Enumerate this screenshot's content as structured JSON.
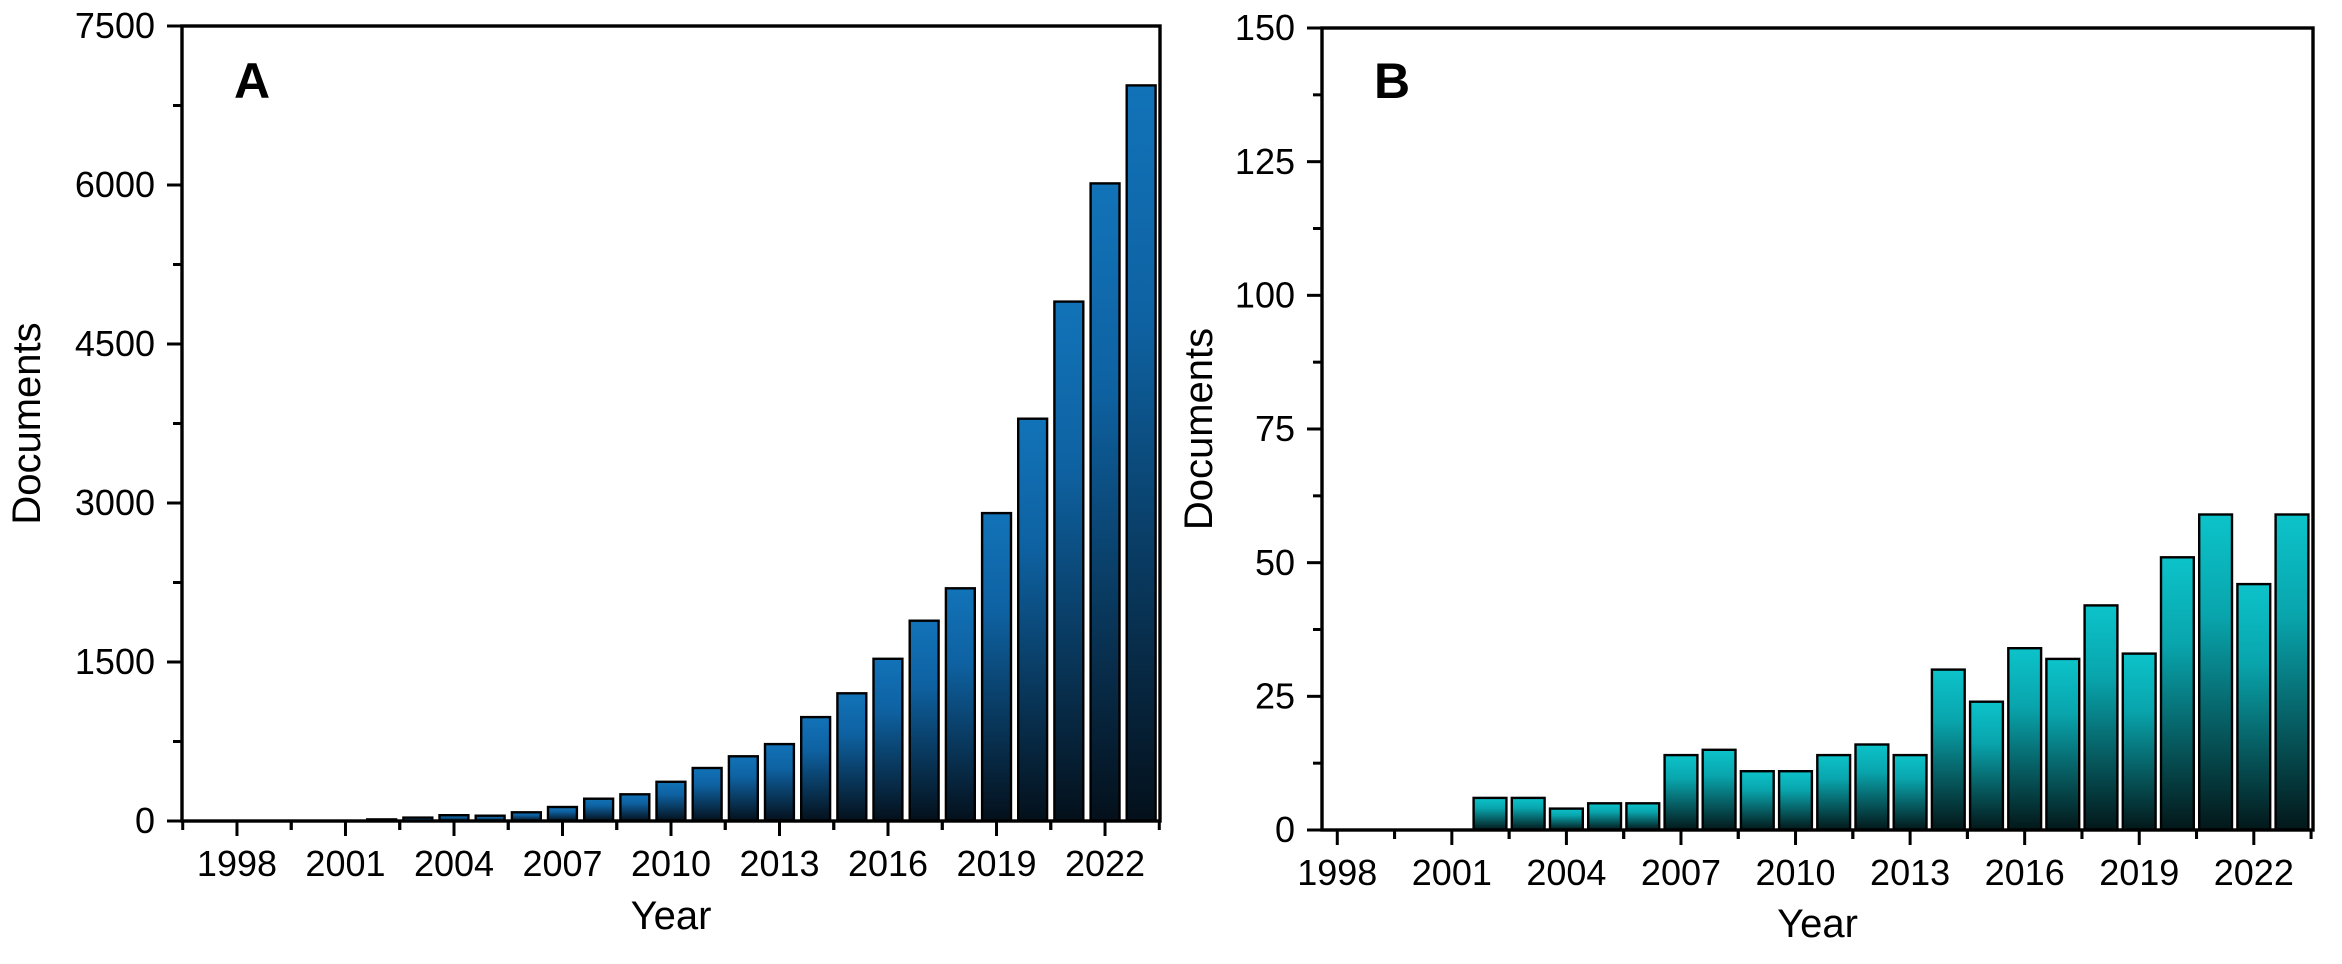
{
  "figure": {
    "background": "#ffffff",
    "axis_color": "#000000"
  },
  "chart_data": [
    {
      "type": "bar",
      "panel_label": "A",
      "xlabel": "Year",
      "ylabel": "Documents",
      "ylim": [
        0,
        7500
      ],
      "y_major_ticks": [
        0,
        1500,
        3000,
        4500,
        6000,
        7500
      ],
      "y_minor_step": 750,
      "x_major_ticks": [
        1998,
        2001,
        2004,
        2007,
        2010,
        2013,
        2016,
        2019,
        2022
      ],
      "x_minor_step_years": 1.5,
      "grid": false,
      "legend": "none",
      "bar_color_top": "#1273b8",
      "bar_color_mid": "#0e62a2",
      "bar_color_bottom": "#04101b",
      "bar_outline": "#000000",
      "years": [
        2002,
        2003,
        2004,
        2005,
        2006,
        2007,
        2008,
        2009,
        2010,
        2011,
        2012,
        2013,
        2014,
        2015,
        2016,
        2017,
        2018,
        2019,
        2020,
        2021,
        2022,
        2023
      ],
      "values": [
        15,
        32,
        55,
        50,
        82,
        132,
        210,
        252,
        370,
        500,
        610,
        725,
        980,
        1205,
        1530,
        1890,
        2195,
        2905,
        3795,
        4900,
        6015,
        6940
      ]
    },
    {
      "type": "bar",
      "panel_label": "B",
      "xlabel": "Year",
      "ylabel": "Documents",
      "ylim": [
        0,
        150
      ],
      "y_major_ticks": [
        0,
        25,
        50,
        75,
        100,
        125,
        150
      ],
      "y_minor_step": 12.5,
      "x_major_ticks": [
        1998,
        2001,
        2004,
        2007,
        2010,
        2013,
        2016,
        2019,
        2022
      ],
      "x_minor_step_years": 1.5,
      "grid": false,
      "legend": "none",
      "bar_color_top": "#0cc3ca",
      "bar_color_mid": "#09a5ad",
      "bar_color_bottom": "#031719",
      "bar_outline": "#000000",
      "years": [
        2002,
        2003,
        2004,
        2005,
        2006,
        2007,
        2008,
        2009,
        2010,
        2011,
        2012,
        2013,
        2014,
        2015,
        2016,
        2017,
        2018,
        2019,
        2020,
        2021,
        2022,
        2023
      ],
      "values": [
        6,
        6,
        4,
        5,
        5,
        14,
        15,
        11,
        11,
        14,
        16,
        14,
        30,
        24,
        34,
        32,
        42,
        33,
        51,
        59,
        46,
        59
      ]
    }
  ]
}
